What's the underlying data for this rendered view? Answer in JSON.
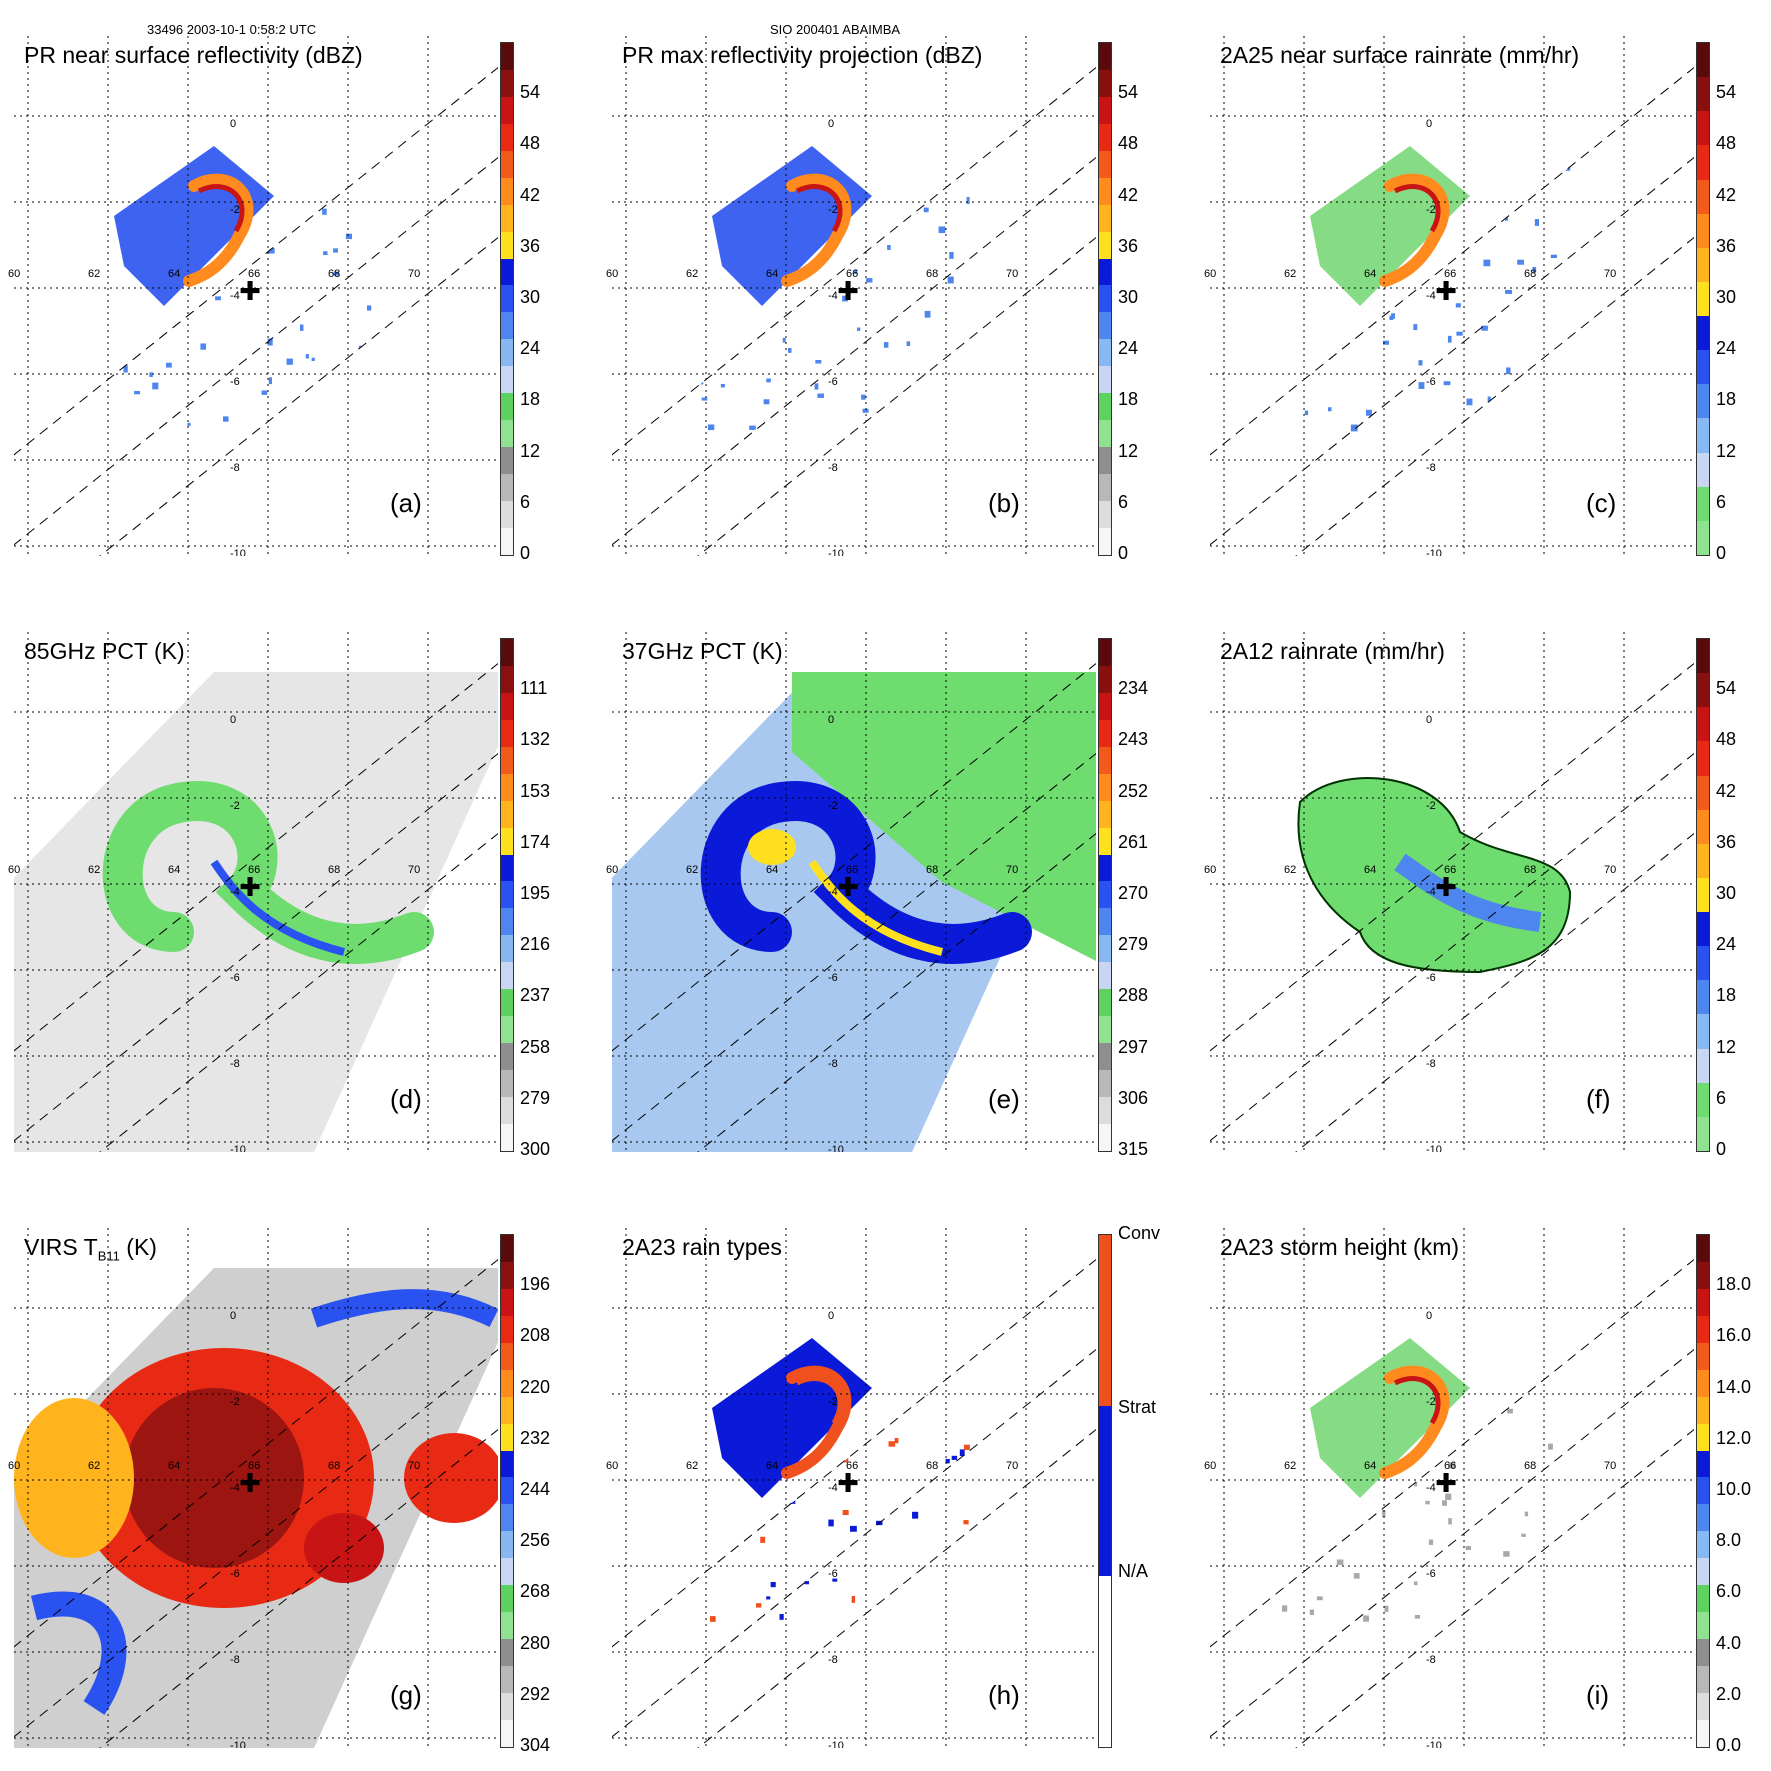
{
  "header": {
    "left": "33496 2003-10-1 0:58:2 UTC",
    "center": "SIO 200401 ABAIMBA"
  },
  "map_grid": {
    "lon_labels": [
      "60",
      "62",
      "64",
      "66",
      "68",
      "70"
    ],
    "lat_labels": [
      "0",
      "-2",
      "-4",
      "-6",
      "-8",
      "-10"
    ]
  },
  "panels": [
    {
      "id": "a",
      "title": "PR near surface reflectivity (dBZ)",
      "letter": "(a)",
      "colorbar_ticks": [
        "54",
        "48",
        "42",
        "36",
        "30",
        "24",
        "18",
        "12",
        "6",
        "0"
      ],
      "colorbar_colors": [
        "#5a0a0a",
        "#8a1010",
        "#c81414",
        "#e82a14",
        "#f25a1c",
        "#ff8a1e",
        "#ffb41e",
        "#ffe01e",
        "#0a1ad8",
        "#2a52f0",
        "#4c86ee",
        "#87b8f4",
        "#c8d6f4",
        "#5ed25e",
        "#8fe28f",
        "#8e8e8e",
        "#b8b8b8",
        "#dcdcdc",
        "#f6f6f6"
      ]
    },
    {
      "id": "b",
      "title": "PR max reflectivity projection (dBZ)",
      "letter": "(b)",
      "colorbar_ticks": [
        "54",
        "48",
        "42",
        "36",
        "30",
        "24",
        "18",
        "12",
        "6",
        "0"
      ],
      "colorbar_colors": [
        "#5a0a0a",
        "#8a1010",
        "#c81414",
        "#e82a14",
        "#f25a1c",
        "#ff8a1e",
        "#ffb41e",
        "#ffe01e",
        "#0a1ad8",
        "#2a52f0",
        "#4c86ee",
        "#87b8f4",
        "#c8d6f4",
        "#5ed25e",
        "#8fe28f",
        "#8e8e8e",
        "#b8b8b8",
        "#dcdcdc",
        "#f6f6f6"
      ]
    },
    {
      "id": "c",
      "title": "2A25 near surface rainrate (mm/hr)",
      "letter": "(c)",
      "colorbar_ticks": [
        "54",
        "48",
        "42",
        "36",
        "30",
        "24",
        "18",
        "12",
        "6",
        "0"
      ],
      "colorbar_colors": [
        "#5a0a0a",
        "#8a1010",
        "#c81414",
        "#e82a14",
        "#f25a1c",
        "#ff8a1e",
        "#ffb41e",
        "#ffe01e",
        "#0a1ad8",
        "#2a52f0",
        "#4c86ee",
        "#87b8f4",
        "#c8d6f4",
        "#6edc6e",
        "#8fe28f"
      ]
    },
    {
      "id": "d",
      "title": "85GHz PCT (K)",
      "letter": "(d)",
      "colorbar_ticks": [
        "111",
        "132",
        "153",
        "174",
        "195",
        "216",
        "237",
        "258",
        "279",
        "300"
      ],
      "colorbar_colors": [
        "#5a0a0a",
        "#8a1010",
        "#c81414",
        "#e82a14",
        "#f25a1c",
        "#ff8a1e",
        "#ffb41e",
        "#ffe01e",
        "#0a1ad8",
        "#2a52f0",
        "#4c86ee",
        "#87b8f4",
        "#c8d6f4",
        "#5ed25e",
        "#8fe28f",
        "#8e8e8e",
        "#b8b8b8",
        "#dcdcdc",
        "#f6f6f6"
      ]
    },
    {
      "id": "e",
      "title": "37GHz PCT (K)",
      "letter": "(e)",
      "colorbar_ticks": [
        "234",
        "243",
        "252",
        "261",
        "270",
        "279",
        "288",
        "297",
        "306",
        "315"
      ],
      "colorbar_colors": [
        "#5a0a0a",
        "#8a1010",
        "#c81414",
        "#e82a14",
        "#f25a1c",
        "#ff8a1e",
        "#ffb41e",
        "#ffe01e",
        "#0a1ad8",
        "#2a52f0",
        "#4c86ee",
        "#87b8f4",
        "#c8d6f4",
        "#5ed25e",
        "#8fe28f",
        "#8e8e8e",
        "#b8b8b8",
        "#dcdcdc",
        "#f6f6f6"
      ]
    },
    {
      "id": "f",
      "title": "2A12 rainrate (mm/hr)",
      "letter": "(f)",
      "colorbar_ticks": [
        "54",
        "48",
        "42",
        "36",
        "30",
        "24",
        "18",
        "12",
        "6",
        "0"
      ],
      "colorbar_colors": [
        "#5a0a0a",
        "#8a1010",
        "#c81414",
        "#e82a14",
        "#f25a1c",
        "#ff8a1e",
        "#ffb41e",
        "#ffe01e",
        "#0a1ad8",
        "#2a52f0",
        "#4c86ee",
        "#87b8f4",
        "#c8d6f4",
        "#6edc6e",
        "#8fe28f"
      ]
    },
    {
      "id": "g",
      "title": "VIRS T",
      "title_sub": "B11",
      "title_suffix": " (K)",
      "letter": "(g)",
      "colorbar_ticks": [
        "196",
        "208",
        "220",
        "232",
        "244",
        "256",
        "268",
        "280",
        "292",
        "304"
      ],
      "colorbar_colors": [
        "#5a0a0a",
        "#8a1010",
        "#c81414",
        "#e82a14",
        "#f25a1c",
        "#ff8a1e",
        "#ffb41e",
        "#ffe01e",
        "#0a1ad8",
        "#2a52f0",
        "#4c86ee",
        "#87b8f4",
        "#c8d6f4",
        "#5ed25e",
        "#8fe28f",
        "#8e8e8e",
        "#b8b8b8",
        "#dcdcdc",
        "#f6f6f6"
      ]
    },
    {
      "id": "h",
      "title": "2A23 rain types",
      "letter": "(h)",
      "colorbar_ticks": [
        "Conv",
        "Strat",
        "N/A"
      ],
      "colorbar_colors": [
        "#f0501e",
        "#0a1ad8",
        "#ffffff"
      ]
    },
    {
      "id": "i",
      "title": "2A23 storm height (km)",
      "letter": "(i)",
      "colorbar_ticks": [
        "18.0",
        "16.0",
        "14.0",
        "12.0",
        "10.0",
        "8.0",
        "6.0",
        "4.0",
        "2.0",
        "0.0"
      ],
      "colorbar_colors": [
        "#5a0a0a",
        "#8a1010",
        "#c81414",
        "#e82a14",
        "#f25a1c",
        "#ff8a1e",
        "#ffb41e",
        "#ffe01e",
        "#0a1ad8",
        "#2a52f0",
        "#4c86ee",
        "#87b8f4",
        "#c8d6f4",
        "#5ed25e",
        "#8fe28f",
        "#8e8e8e",
        "#b8b8b8",
        "#dcdcdc",
        "#f6f6f6"
      ]
    }
  ]
}
